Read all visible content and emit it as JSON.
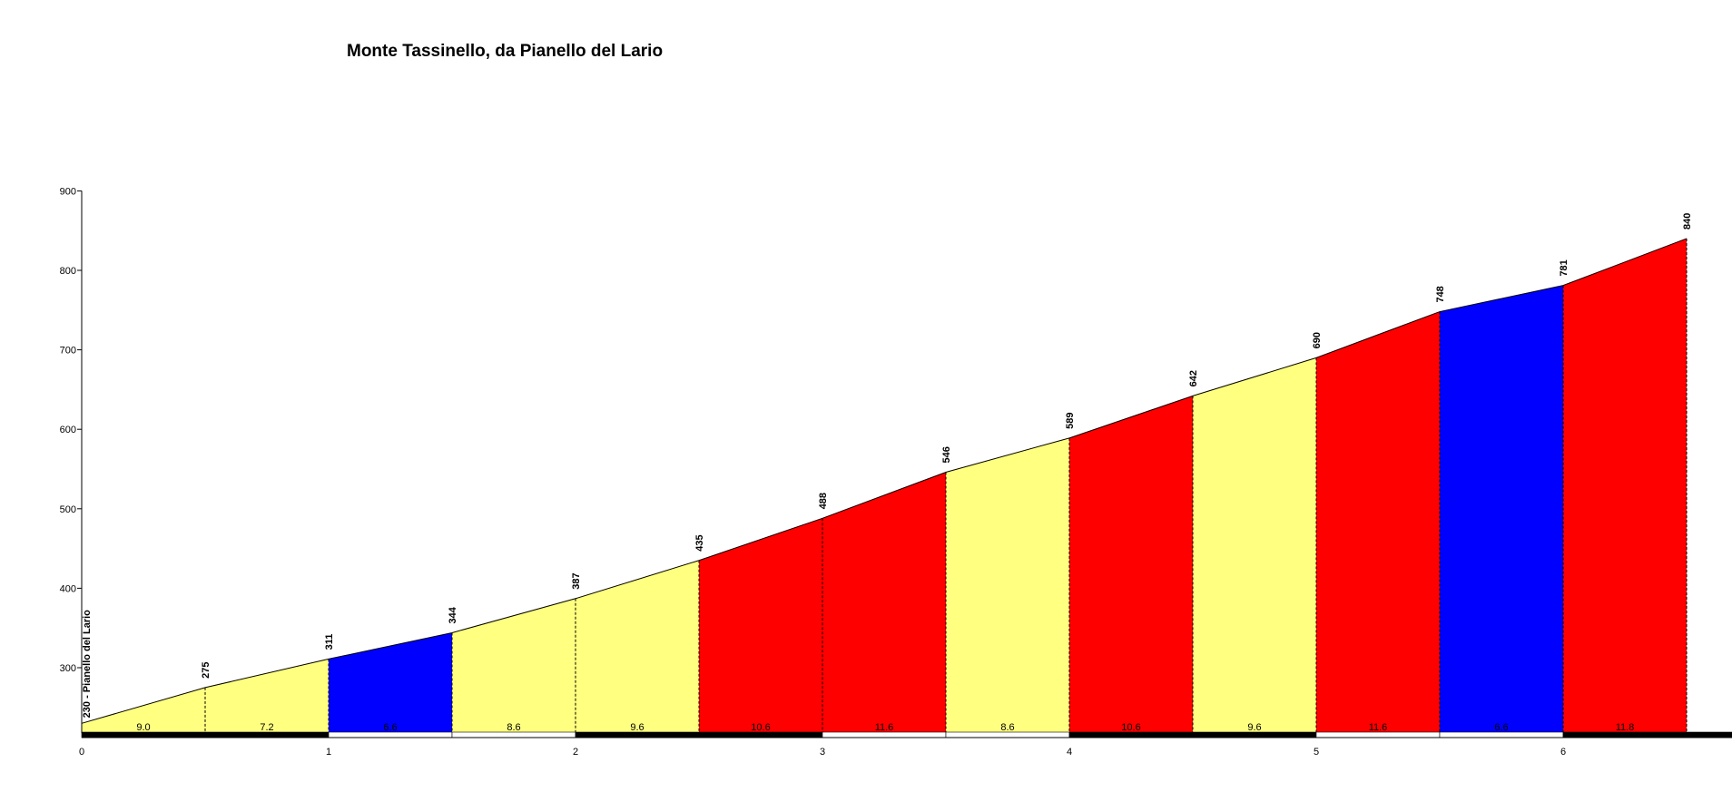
{
  "chart_data": {
    "type": "area",
    "title": "Monte Tassinello, da Pianello del Lario",
    "xlabel": "",
    "ylabel": "",
    "xlim": [
      0,
      7
    ],
    "ylim": [
      215,
      900
    ],
    "x_ticks": [
      "0",
      "1",
      "2",
      "3",
      "4",
      "5",
      "6"
    ],
    "y_ticks": [
      "300",
      "400",
      "500",
      "600",
      "700",
      "800",
      "900"
    ],
    "start_label": "230 - Pianello del Lario",
    "points": [
      {
        "x": 0.0,
        "y": 230,
        "label": ""
      },
      {
        "x": 0.5,
        "y": 275,
        "label": "275"
      },
      {
        "x": 1.0,
        "y": 311,
        "label": "311"
      },
      {
        "x": 1.5,
        "y": 344,
        "label": "344"
      },
      {
        "x": 2.0,
        "y": 387,
        "label": "387"
      },
      {
        "x": 2.5,
        "y": 435,
        "label": "435"
      },
      {
        "x": 3.0,
        "y": 488,
        "label": "488"
      },
      {
        "x": 3.5,
        "y": 546,
        "label": "546"
      },
      {
        "x": 4.0,
        "y": 589,
        "label": "589"
      },
      {
        "x": 4.5,
        "y": 642,
        "label": "642"
      },
      {
        "x": 5.0,
        "y": 690,
        "label": "690"
      },
      {
        "x": 5.5,
        "y": 748,
        "label": "748"
      },
      {
        "x": 6.0,
        "y": 781,
        "label": "781"
      },
      {
        "x": 6.5,
        "y": 840,
        "label": "840"
      }
    ],
    "segments": [
      {
        "gradient": "9.0",
        "color": "#ffff80"
      },
      {
        "gradient": "7.2",
        "color": "#ffff80"
      },
      {
        "gradient": "6.6",
        "color": "#0000ff"
      },
      {
        "gradient": "8.6",
        "color": "#ffff80"
      },
      {
        "gradient": "9.6",
        "color": "#ffff80"
      },
      {
        "gradient": "10.6",
        "color": "#ff0000"
      },
      {
        "gradient": "11.6",
        "color": "#ff0000"
      },
      {
        "gradient": "8.6",
        "color": "#ffff80"
      },
      {
        "gradient": "10.6",
        "color": "#ff0000"
      },
      {
        "gradient": "9.6",
        "color": "#ffff80"
      },
      {
        "gradient": "11.6",
        "color": "#ff0000"
      },
      {
        "gradient": "6.6",
        "color": "#0000ff"
      },
      {
        "gradient": "11.8",
        "color": "#ff0000"
      }
    ],
    "km_bar_colors": [
      "#000000",
      "#ffffff"
    ],
    "grid": false,
    "legend": "none"
  }
}
